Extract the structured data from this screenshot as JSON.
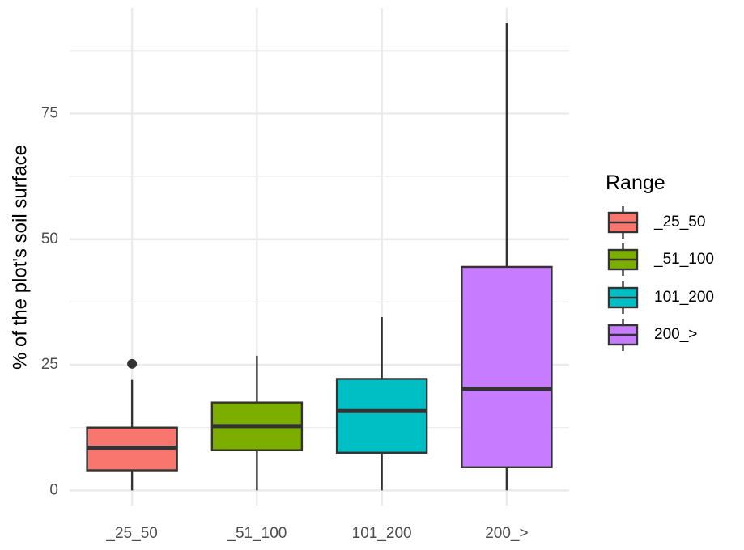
{
  "chart_data": {
    "type": "boxplot",
    "title": "",
    "xlabel": "",
    "ylabel": "% of the plot's soil surface",
    "ylim": [
      -3,
      96
    ],
    "yticks": [
      0,
      25,
      50,
      75
    ],
    "grid": true,
    "legend": {
      "title": "Range",
      "position": "right"
    },
    "categories": [
      "_25_50",
      "_51_100",
      "101_200",
      "200_>"
    ],
    "series": [
      {
        "name": "_25_50",
        "color": "#F8766D",
        "whisker_low": 0,
        "q1": 4,
        "median": 8.5,
        "q3": 12.5,
        "whisker_high": 22,
        "outliers": [
          25.2
        ]
      },
      {
        "name": "_51_100",
        "color": "#7CAE00",
        "whisker_low": 0,
        "q1": 8,
        "median": 12.8,
        "q3": 17.5,
        "whisker_high": 26.8,
        "outliers": []
      },
      {
        "name": "101_200",
        "color": "#00BFC4",
        "whisker_low": 0,
        "q1": 7.5,
        "median": 15.8,
        "q3": 22.2,
        "whisker_high": 34.5,
        "outliers": []
      },
      {
        "name": "200_>",
        "color": "#C77CFF",
        "whisker_low": 0,
        "q1": 4.6,
        "median": 20.2,
        "q3": 44.5,
        "whisker_high": 93,
        "outliers": []
      }
    ]
  }
}
